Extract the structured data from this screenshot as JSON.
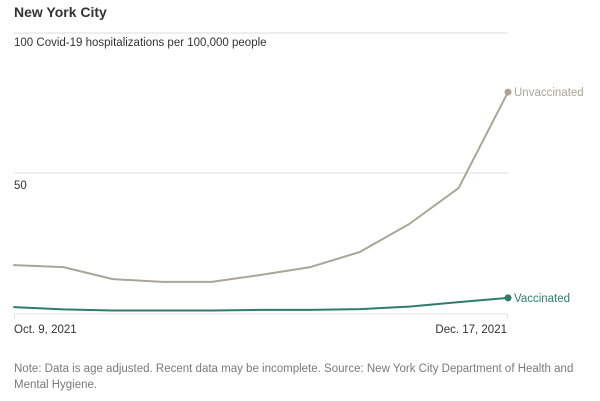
{
  "chart_data": {
    "type": "line",
    "title": "New York City",
    "ylabel": "Covid-19 hospitalizations per 100,000 people",
    "xlabel": "",
    "ylim": [
      0,
      100
    ],
    "yticks": [
      {
        "value": 100,
        "label": "100"
      },
      {
        "value": 50,
        "label": "50"
      }
    ],
    "xtick_labels": {
      "start": "Oct. 9, 2021",
      "end": "Dec. 17, 2021"
    },
    "grid": true,
    "x": [
      "Oct. 9, 2021",
      "Oct. 16, 2021",
      "Oct. 23, 2021",
      "Oct. 30, 2021",
      "Nov. 6, 2021",
      "Nov. 13, 2021",
      "Nov. 20, 2021",
      "Nov. 27, 2021",
      "Dec. 4, 2021",
      "Dec. 11, 2021",
      "Dec. 17, 2021"
    ],
    "series": [
      {
        "name": "Unvaccinated",
        "color": "#a9a597",
        "values": [
          17.1,
          16.4,
          12.1,
          11.1,
          11.1,
          13.6,
          16.4,
          21.8,
          31.8,
          44.6,
          78.9
        ]
      },
      {
        "name": "Vaccinated",
        "color": "#2e7d6b",
        "values": [
          2.1,
          1.3,
          0.9,
          0.9,
          0.9,
          1.1,
          1.1,
          1.4,
          2.3,
          3.9,
          5.4
        ]
      }
    ],
    "legend": "inline-at-line-ends",
    "note": "Note: Data is age adjusted. Recent data may be incomplete. Source: New York City Department of Health and Mental Hygiene."
  },
  "colors": {
    "grid": "#e8e8e8",
    "axis": "#e3e3e3"
  }
}
